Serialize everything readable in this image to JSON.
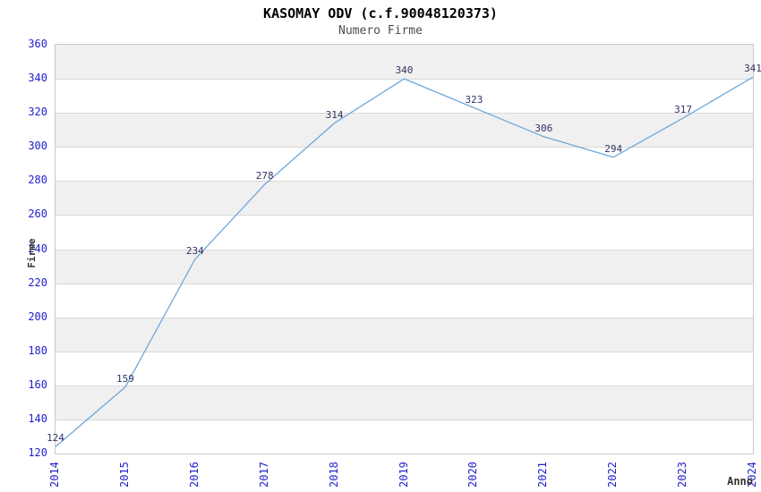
{
  "header": {
    "title": "KASOMAY ODV (c.f.90048120373)",
    "subtitle": "Numero Firme"
  },
  "chart_data": {
    "type": "line",
    "title": "KASOMAY ODV (c.f.90048120373)",
    "subtitle": "Numero Firme",
    "xlabel": "Anno",
    "ylabel": "Firme",
    "x": [
      2014,
      2015,
      2016,
      2017,
      2018,
      2019,
      2020,
      2021,
      2022,
      2023,
      2024
    ],
    "series": [
      {
        "name": "Numero Firme",
        "values": [
          124,
          159,
          234,
          278,
          314,
          340,
          323,
          306,
          294,
          317,
          341
        ]
      }
    ],
    "ylim": [
      120,
      360
    ],
    "ytick_step": 20,
    "yticks": [
      120,
      140,
      160,
      180,
      200,
      220,
      240,
      260,
      280,
      300,
      320,
      340,
      360
    ],
    "point_labels_visible": true,
    "legend": "none",
    "grid": "horizontal-lines-with-alternating-bands",
    "colors": {
      "background": "#ffffff",
      "title": "#000000",
      "subtitle": "#4d4d4d",
      "line": "#6fa8dc",
      "tick_label": "#2222cc",
      "point_label": "#333366",
      "band": "#f0f0f0",
      "grid": "#d9d9d9",
      "border": "#c9c9c9",
      "axis_title": "#333333"
    }
  }
}
